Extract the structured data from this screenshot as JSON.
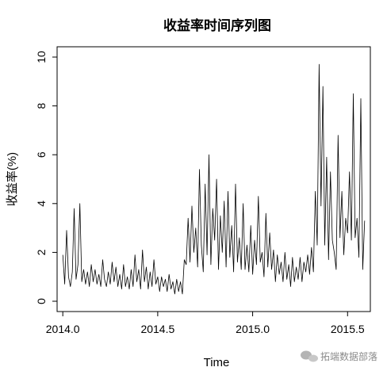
{
  "chart_data": {
    "type": "line",
    "title": "收益率时间序列图",
    "xlabel": "Time",
    "ylabel": "收益率(%)",
    "xlim": [
      2013.97,
      2015.62
    ],
    "ylim": [
      0,
      10
    ],
    "x_ticks": [
      2014.0,
      2014.5,
      2015.0,
      2015.5
    ],
    "x_tick_labels": [
      "2014.0",
      "2014.5",
      "2015.0",
      "2015.5"
    ],
    "y_ticks": [
      0,
      2,
      4,
      6,
      8,
      10
    ],
    "y_tick_labels": [
      "0",
      "2",
      "4",
      "6",
      "8",
      "10"
    ],
    "grid": false,
    "series": [
      {
        "color": "#000000",
        "x": [
          2014.0,
          2014.01,
          2014.02,
          2014.03,
          2014.04,
          2014.05,
          2014.06,
          2014.07,
          2014.08,
          2014.09,
          2014.1,
          2014.11,
          2014.12,
          2014.13,
          2014.14,
          2014.15,
          2014.16,
          2014.17,
          2014.18,
          2014.19,
          2014.2,
          2014.21,
          2014.22,
          2014.23,
          2014.24,
          2014.25,
          2014.26,
          2014.27,
          2014.28,
          2014.29,
          2014.3,
          2014.31,
          2014.32,
          2014.33,
          2014.34,
          2014.35,
          2014.36,
          2014.37,
          2014.38,
          2014.39,
          2014.4,
          2014.41,
          2014.42,
          2014.43,
          2014.44,
          2014.45,
          2014.46,
          2014.47,
          2014.48,
          2014.49,
          2014.5,
          2014.51,
          2014.52,
          2014.53,
          2014.54,
          2014.55,
          2014.56,
          2014.57,
          2014.58,
          2014.59,
          2014.6,
          2014.61,
          2014.62,
          2014.63,
          2014.64,
          2014.65,
          2014.66,
          2014.67,
          2014.68,
          2014.69,
          2014.7,
          2014.71,
          2014.72,
          2014.73,
          2014.74,
          2014.75,
          2014.76,
          2014.77,
          2014.78,
          2014.79,
          2014.8,
          2014.81,
          2014.82,
          2014.83,
          2014.84,
          2014.85,
          2014.86,
          2014.87,
          2014.88,
          2014.89,
          2014.9,
          2014.91,
          2014.92,
          2014.93,
          2014.94,
          2014.95,
          2014.96,
          2014.97,
          2014.98,
          2014.99,
          2015.0,
          2015.01,
          2015.02,
          2015.03,
          2015.04,
          2015.05,
          2015.06,
          2015.07,
          2015.08,
          2015.09,
          2015.1,
          2015.11,
          2015.12,
          2015.13,
          2015.14,
          2015.15,
          2015.16,
          2015.17,
          2015.18,
          2015.19,
          2015.2,
          2015.21,
          2015.22,
          2015.23,
          2015.24,
          2015.25,
          2015.26,
          2015.27,
          2015.28,
          2015.29,
          2015.3,
          2015.31,
          2015.32,
          2015.33,
          2015.34,
          2015.35,
          2015.36,
          2015.37,
          2015.38,
          2015.39,
          2015.4,
          2015.41,
          2015.42,
          2015.43,
          2015.44,
          2015.45,
          2015.46,
          2015.47,
          2015.48,
          2015.49,
          2015.5,
          2015.51,
          2015.52,
          2015.53,
          2015.54,
          2015.55,
          2015.56,
          2015.57,
          2015.58,
          2015.59
        ],
        "y": [
          1.9,
          0.7,
          2.9,
          1.0,
          0.6,
          1.2,
          3.8,
          0.9,
          1.5,
          4.0,
          0.8,
          1.3,
          0.7,
          1.2,
          0.6,
          1.5,
          0.8,
          1.3,
          0.7,
          1.1,
          0.6,
          1.7,
          0.9,
          0.6,
          1.2,
          0.7,
          1.6,
          0.8,
          1.4,
          0.6,
          1.1,
          0.5,
          1.5,
          0.6,
          1.0,
          0.5,
          1.3,
          0.6,
          1.9,
          0.8,
          1.3,
          0.5,
          2.1,
          0.8,
          1.4,
          0.5,
          1.2,
          0.6,
          1.7,
          0.7,
          1.0,
          0.4,
          1.0,
          0.6,
          0.9,
          0.4,
          1.1,
          0.5,
          0.8,
          0.3,
          0.9,
          0.4,
          0.8,
          0.3,
          1.7,
          1.5,
          3.4,
          1.6,
          3.9,
          2.0,
          3.0,
          1.4,
          5.4,
          2.3,
          1.2,
          4.8,
          1.9,
          6.0,
          1.5,
          3.8,
          2.5,
          5.0,
          1.3,
          3.5,
          2.0,
          4.1,
          1.4,
          4.5,
          1.8,
          3.1,
          1.2,
          4.8,
          1.6,
          2.6,
          1.3,
          4.0,
          1.3,
          2.3,
          1.2,
          3.1,
          1.1,
          2.5,
          1.5,
          4.3,
          1.6,
          2.0,
          1.0,
          3.6,
          1.4,
          2.8,
          1.3,
          2.1,
          0.8,
          1.9,
          1.1,
          1.6,
          0.8,
          2.0,
          0.9,
          1.5,
          0.6,
          1.8,
          0.8,
          1.4,
          0.9,
          1.8,
          0.8,
          1.6,
          1.2,
          1.9,
          1.1,
          2.2,
          1.2,
          4.5,
          2.3,
          9.7,
          3.9,
          8.8,
          2.3,
          5.9,
          1.7,
          5.3,
          2.5,
          2.0,
          1.3,
          6.8,
          2.6,
          4.5,
          1.9,
          3.4,
          2.8,
          5.3,
          2.5,
          8.5,
          2.6,
          3.4,
          1.8,
          8.3,
          1.3,
          3.3
        ]
      }
    ]
  },
  "watermark": {
    "text": "拓端数据部落",
    "icon": "wechat-bubble-icon"
  }
}
